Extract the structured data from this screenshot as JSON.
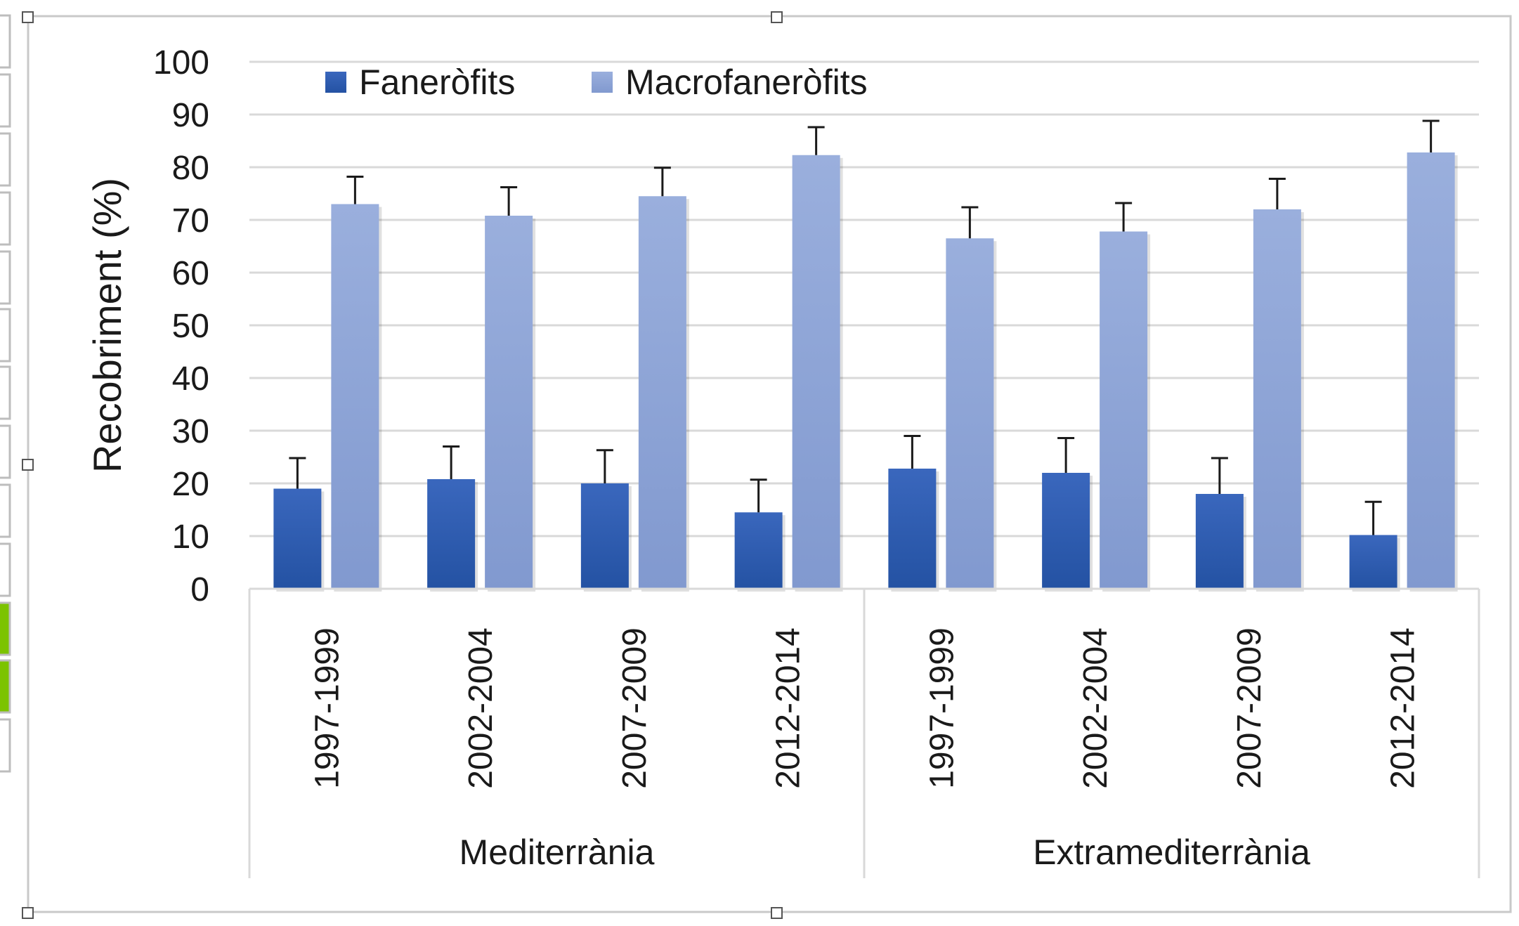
{
  "chart_data": {
    "type": "bar",
    "title": "",
    "xlabel": "",
    "ylabel": "Recobriment (%)",
    "ylim": [
      0,
      100
    ],
    "yticks": [
      0,
      10,
      20,
      30,
      40,
      50,
      60,
      70,
      80,
      90,
      100
    ],
    "grid": true,
    "legend_position": "top-left",
    "groups": [
      {
        "name": "Mediterrània",
        "categories": [
          "1997-1999",
          "2002-2004",
          "2007-2009",
          "2012-2014"
        ]
      },
      {
        "name": "Extramediterrània",
        "categories": [
          "1997-1999",
          "2002-2004",
          "2007-2009",
          "2012-2014"
        ]
      }
    ],
    "series": [
      {
        "name": "Faneròfits",
        "color": "#2f5aa8",
        "values": [
          19,
          20.8,
          20,
          14.5,
          22.8,
          22,
          18,
          10.2
        ],
        "errors": [
          5.8,
          6.2,
          6.3,
          6.2,
          6.2,
          6.6,
          6.8,
          6.3
        ]
      },
      {
        "name": "Macrofaneròfits",
        "color": "#8ea4d6",
        "values": [
          73,
          70.8,
          74.5,
          82.3,
          66.5,
          67.8,
          72,
          82.8
        ],
        "errors": [
          5.2,
          5.4,
          5.4,
          5.3,
          5.9,
          5.4,
          5.8,
          6
        ]
      }
    ]
  }
}
